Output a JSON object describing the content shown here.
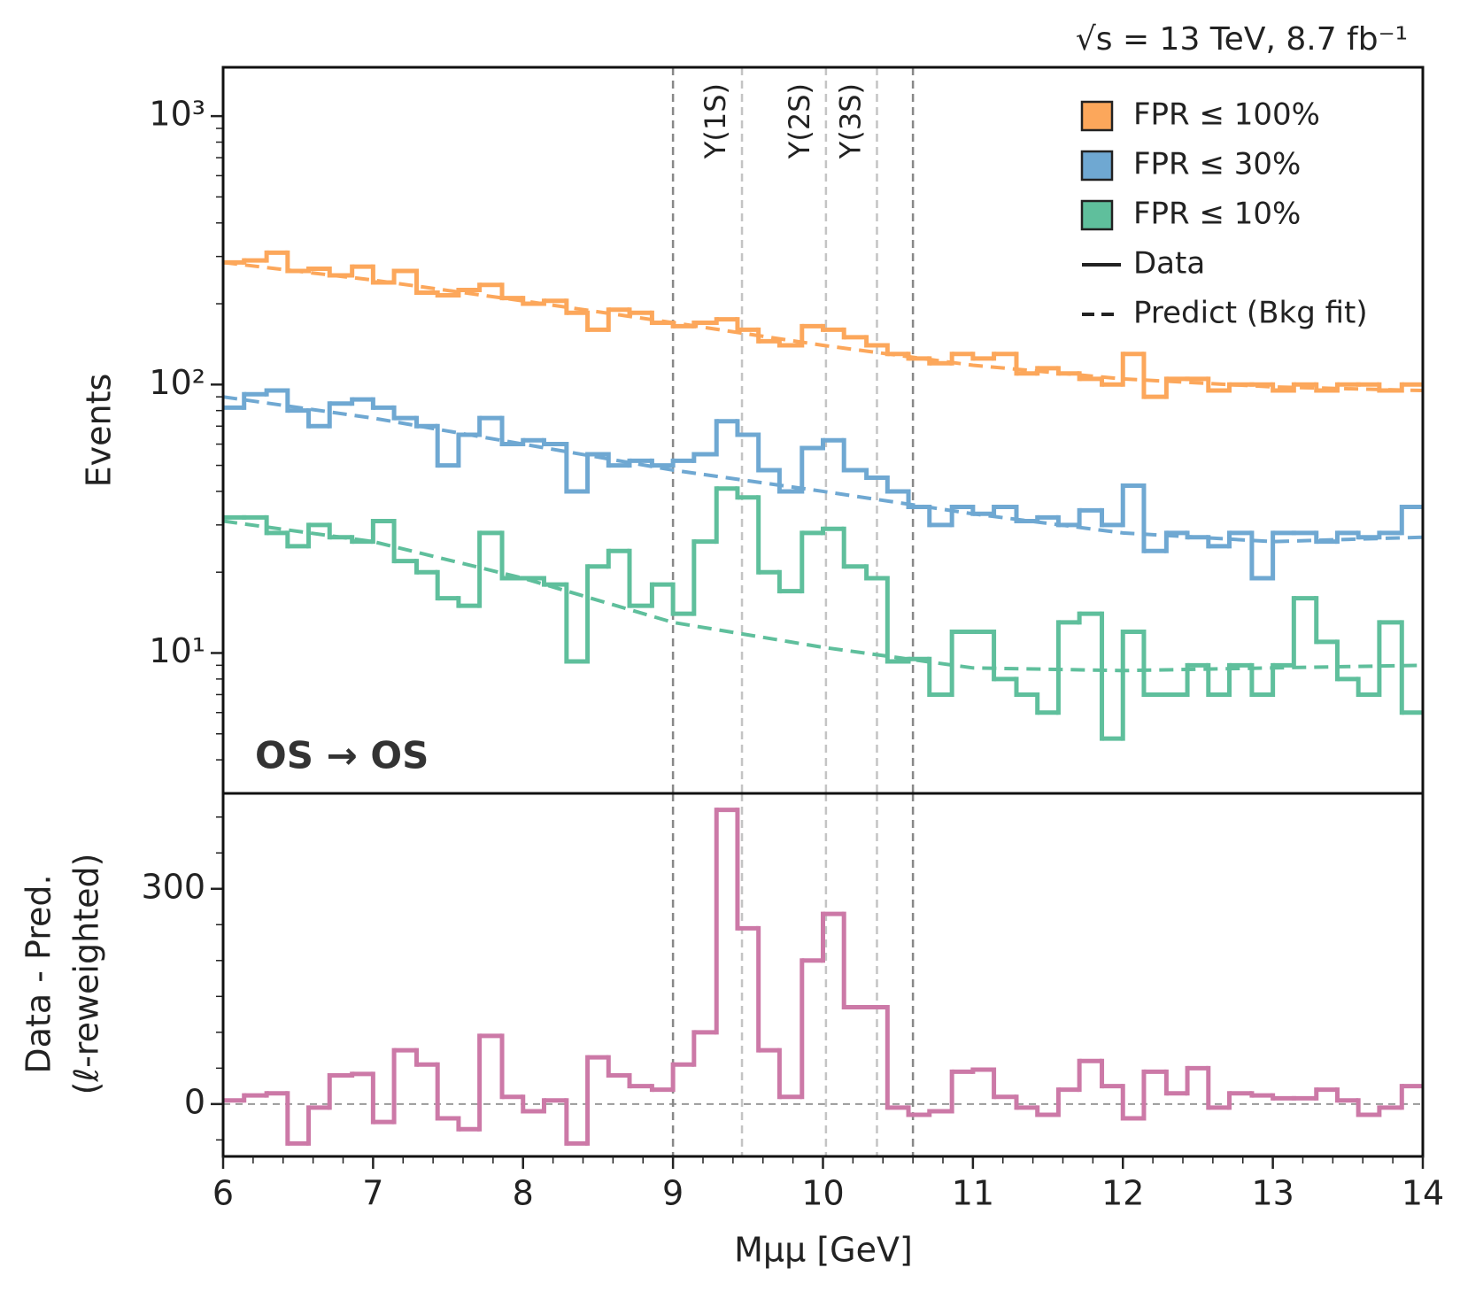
{
  "chart_data": [
    {
      "type": "histogram",
      "annotation": "OS → OS",
      "energy_label": "√s = 13 TeV,  8.7 fb⁻¹",
      "ylabel": "Events",
      "ylog": true,
      "xlim": [
        6,
        14
      ],
      "ylim": [
        3,
        1520
      ],
      "yticks": [
        {
          "value": 10,
          "label": "10¹"
        },
        {
          "value": 100,
          "label": "10²"
        },
        {
          "value": 1000,
          "label": "10³"
        }
      ],
      "bins": [
        6,
        6.14,
        6.29,
        6.43,
        6.57,
        6.71,
        6.86,
        7,
        7.14,
        7.29,
        7.43,
        7.57,
        7.71,
        7.86,
        8,
        8.14,
        8.29,
        8.43,
        8.57,
        8.71,
        8.86,
        9,
        9.14,
        9.29,
        9.43,
        9.57,
        9.71,
        9.86,
        10,
        10.14,
        10.29,
        10.43,
        10.57,
        10.71,
        10.86,
        11,
        11.14,
        11.29,
        11.43,
        11.57,
        11.71,
        11.86,
        12,
        12.14,
        12.29,
        12.43,
        12.57,
        12.71,
        12.86,
        13,
        13.14,
        13.29,
        13.43,
        13.57,
        13.71,
        13.86,
        14
      ],
      "series": [
        {
          "name": "FPR ≤ 100%",
          "color": "#fca75b",
          "values": [
            285,
            290,
            310,
            265,
            270,
            255,
            275,
            240,
            265,
            220,
            215,
            225,
            235,
            210,
            200,
            205,
            185,
            160,
            190,
            185,
            170,
            165,
            170,
            175,
            160,
            145,
            140,
            165,
            160,
            150,
            140,
            130,
            125,
            120,
            130,
            125,
            130,
            110,
            115,
            110,
            105,
            100,
            130,
            90,
            105,
            105,
            95,
            100,
            100,
            95,
            100,
            95,
            100,
            100,
            95,
            100
          ]
        },
        {
          "name": "FPR ≤ 30%",
          "color": "#6fa8d2",
          "values": [
            82,
            92,
            95,
            80,
            70,
            85,
            88,
            82,
            75,
            70,
            50,
            65,
            75,
            60,
            62,
            60,
            40,
            55,
            50,
            52,
            50,
            52,
            55,
            73,
            65,
            48,
            40,
            58,
            62,
            48,
            45,
            40,
            35,
            30,
            35,
            33,
            35,
            31,
            32,
            30,
            34,
            30,
            42,
            24,
            28,
            27,
            25,
            28,
            19,
            28,
            28,
            26,
            28,
            27,
            28,
            35
          ]
        },
        {
          "name": "FPR ≤ 10%",
          "color": "#5fbf9c",
          "values": [
            32,
            32,
            28,
            25,
            30,
            27,
            26,
            31,
            22,
            20,
            16,
            15,
            28,
            19,
            19,
            18,
            9.3,
            21,
            24,
            15,
            18,
            14,
            26,
            41,
            38,
            20,
            17,
            28,
            29,
            21,
            19,
            9.3,
            9.5,
            7,
            12,
            12,
            8,
            7,
            6,
            13,
            14,
            4.8,
            12,
            7,
            7,
            9,
            7,
            9,
            7,
            9,
            16,
            11,
            8,
            7,
            13,
            6
          ]
        }
      ],
      "fits": [
        {
          "x": [
            6,
            7,
            8,
            9,
            10,
            11,
            12,
            13,
            14
          ],
          "values": [
            285,
            245,
            205,
            170,
            140,
            118,
            105,
            98,
            95
          ]
        },
        {
          "x": [
            6,
            7,
            8,
            9,
            10,
            11,
            12,
            13,
            14
          ],
          "values": [
            90,
            75,
            60,
            48,
            40,
            33,
            28,
            26,
            27
          ]
        },
        {
          "x": [
            6,
            7,
            8,
            9,
            10,
            11,
            12,
            13,
            14
          ],
          "values": [
            31,
            26,
            19,
            13,
            10.5,
            8.8,
            8.6,
            8.8,
            9
          ]
        }
      ],
      "legend_lines": [
        "Data",
        "Predict (Bkg fit)"
      ],
      "legend": "upper right",
      "vlines": [
        {
          "x": 9,
          "color": "#888888"
        },
        {
          "x": 9.46,
          "color": "#c4c4c4",
          "label": "Υ(1S)"
        },
        {
          "x": 10.02,
          "color": "#c4c4c4",
          "label": "Υ(2S)"
        },
        {
          "x": 10.36,
          "color": "#c4c4c4",
          "label": "Υ(3S)"
        },
        {
          "x": 10.6,
          "color": "#888888"
        }
      ]
    },
    {
      "type": "histogram",
      "xlabel": "Mμμ [GeV]",
      "ylabel": [
        "Data - Pred.",
        "(ℓ-reweighted)"
      ],
      "xlim": [
        6,
        14
      ],
      "xticks": [
        6,
        7,
        8,
        9,
        10,
        11,
        12,
        13,
        14
      ],
      "ylim": [
        -73,
        433
      ],
      "yticks": [
        0,
        300
      ],
      "bins": [
        6,
        6.14,
        6.29,
        6.43,
        6.57,
        6.71,
        6.86,
        7,
        7.14,
        7.29,
        7.43,
        7.57,
        7.71,
        7.86,
        8,
        8.14,
        8.29,
        8.43,
        8.57,
        8.71,
        8.86,
        9,
        9.14,
        9.29,
        9.43,
        9.57,
        9.71,
        9.86,
        10,
        10.14,
        10.29,
        10.43,
        10.57,
        10.71,
        10.86,
        11,
        11.14,
        11.29,
        11.43,
        11.57,
        11.71,
        11.86,
        12,
        12.14,
        12.29,
        12.43,
        12.57,
        12.71,
        12.86,
        13,
        13.14,
        13.29,
        13.43,
        13.57,
        13.71,
        13.86,
        14
      ],
      "series": [
        {
          "color": "#cc79a7",
          "values": [
            5,
            12,
            15,
            -55,
            -5,
            40,
            42,
            -25,
            75,
            55,
            -20,
            -35,
            95,
            10,
            -10,
            5,
            -55,
            65,
            40,
            25,
            20,
            55,
            100,
            410,
            245,
            75,
            10,
            200,
            265,
            135,
            135,
            -5,
            -15,
            -10,
            45,
            48,
            10,
            -5,
            -15,
            20,
            60,
            25,
            -20,
            45,
            15,
            50,
            -5,
            15,
            12,
            8,
            8,
            20,
            5,
            -15,
            -5,
            25
          ]
        }
      ],
      "vlines": [
        {
          "x": 9,
          "color": "#888888"
        },
        {
          "x": 9.46,
          "color": "#c4c4c4"
        },
        {
          "x": 10.02,
          "color": "#c4c4c4"
        },
        {
          "x": 10.36,
          "color": "#c4c4c4"
        },
        {
          "x": 10.6,
          "color": "#888888"
        }
      ]
    }
  ]
}
